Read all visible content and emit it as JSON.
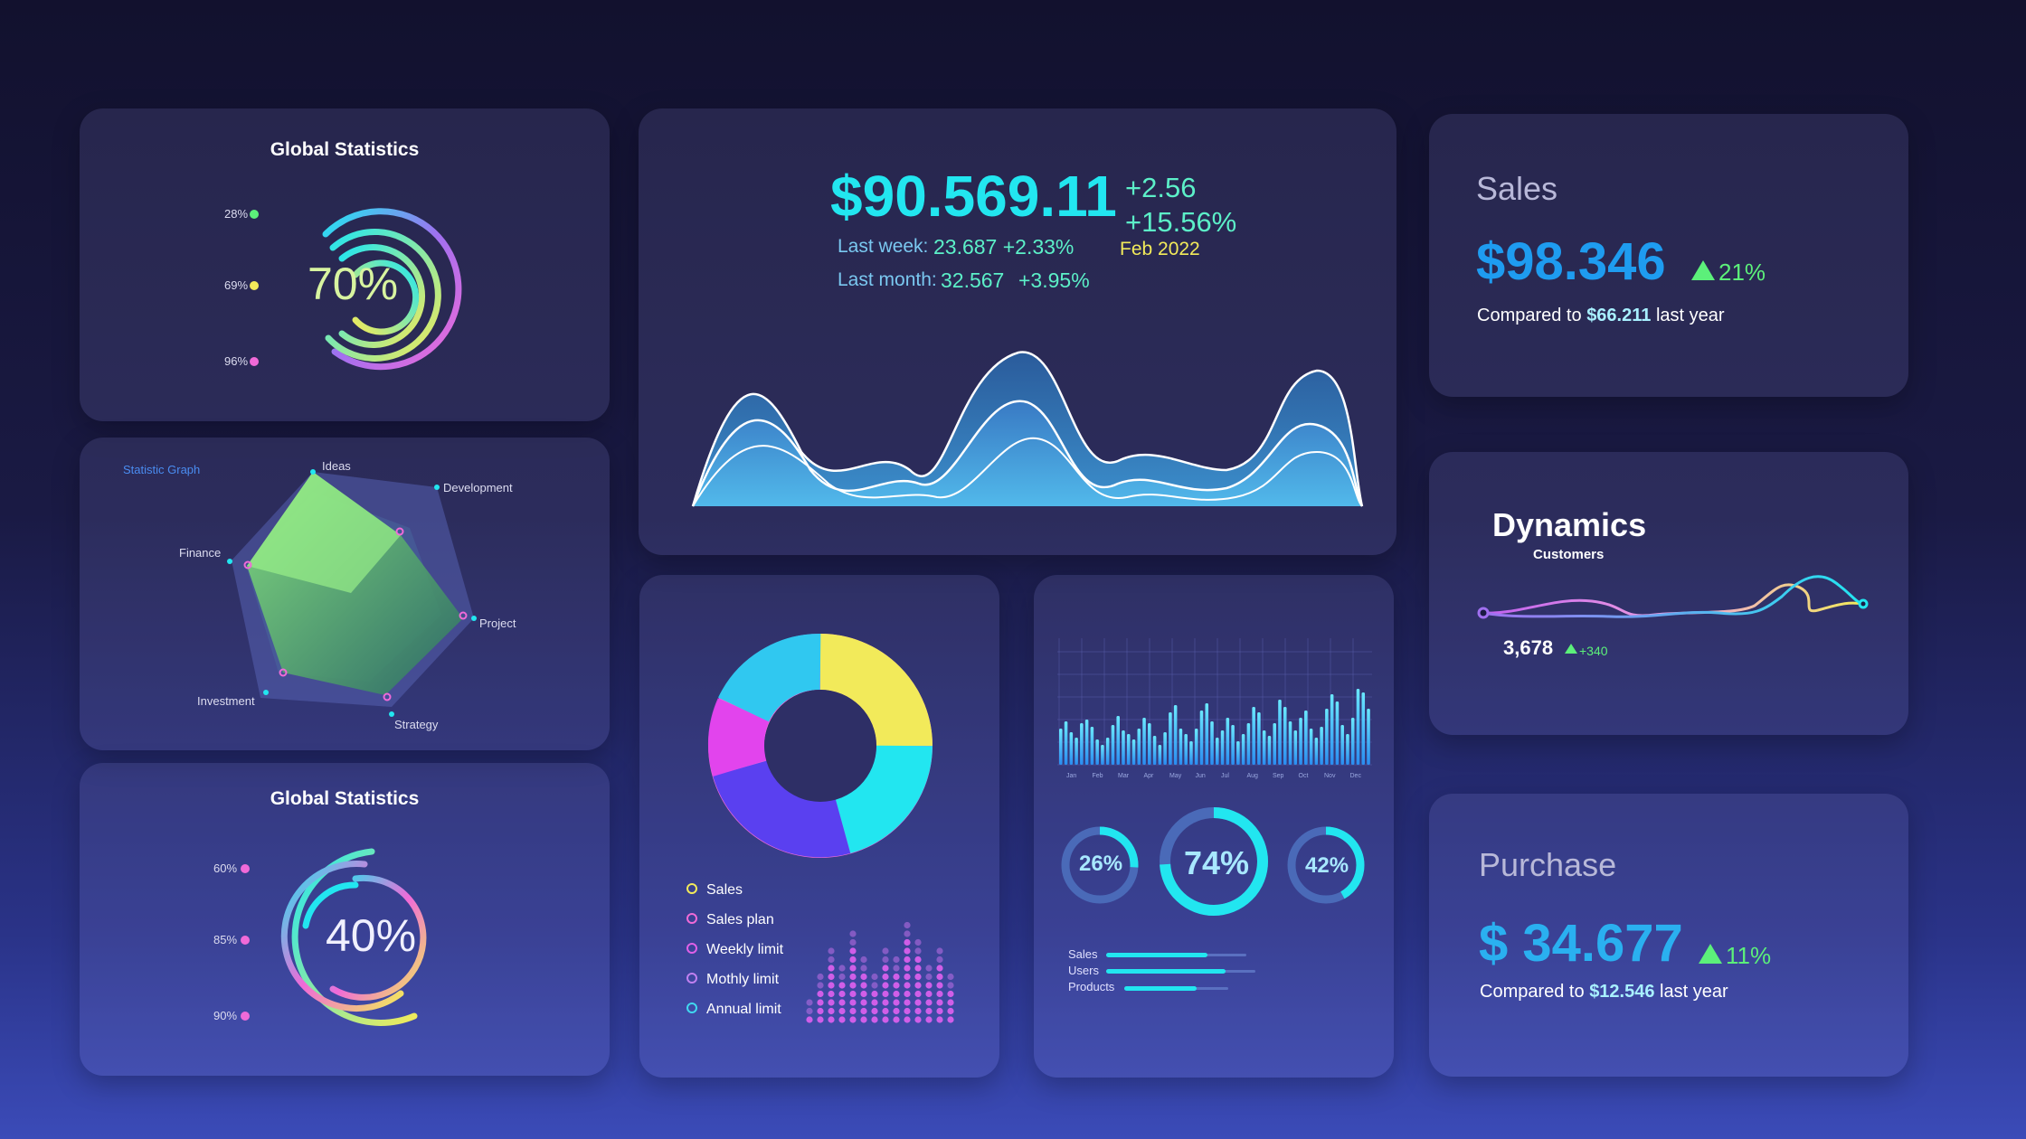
{
  "colors": {
    "cyan": "#22e6f0",
    "green": "#5cf07a",
    "yellow": "#f2ea5a",
    "pink": "#f06ad8",
    "blue": "#2a8cf0"
  },
  "global1": {
    "title": "Global Statistics",
    "percent": "70%",
    "labels": [
      "28%",
      "69%",
      "96%"
    ]
  },
  "radar": {
    "title": "Statistic Graph",
    "axes": [
      "Ideas",
      "Development",
      "Project",
      "Strategy",
      "Investment",
      "Finance"
    ]
  },
  "global2": {
    "title": "Global Statistics",
    "percent": "40%",
    "labels": [
      "60%",
      "85%",
      "90%"
    ]
  },
  "main": {
    "price": "$90.569.11",
    "change": "+2.56",
    "change_pct": "+15.56%",
    "date": "Feb 2022",
    "last_week_label": "Last week:",
    "last_week_value": "23.687 +2.33%",
    "last_month_label": "Last month:",
    "last_month_value": "32.567",
    "last_month_change": "+3.95%"
  },
  "donut": {
    "legend": [
      "Sales",
      "Sales plan",
      "Weekly limit",
      "Mothly limit",
      "Annual limit"
    ],
    "legend_colors": [
      "#f2ea5a",
      "#f06ad8",
      "#e060e8",
      "#c080f0",
      "#40d8f0"
    ]
  },
  "bars": {
    "months": [
      "Jan",
      "Feb",
      "Mar",
      "Apr",
      "May",
      "Jun",
      "Jul",
      "Aug",
      "Sep",
      "Oct",
      "Nov",
      "Dec"
    ],
    "gauges": [
      "26%",
      "74%",
      "42%"
    ],
    "gauge_values": [
      0.26,
      0.74,
      0.42
    ],
    "progress": [
      {
        "label": "Sales",
        "value": 0.72
      },
      {
        "label": "Users",
        "value": 0.8
      },
      {
        "label": "Products",
        "value": 0.7
      }
    ]
  },
  "sales": {
    "title": "Sales",
    "value": "$98.346",
    "change": "21%",
    "compared_prefix": "Compared to",
    "compared_value": "$66.211",
    "compared_suffix": "last year"
  },
  "dynamics": {
    "title": "Dynamics",
    "subtitle": "Customers",
    "value": "3,678",
    "change": "+340"
  },
  "purchase": {
    "title": "Purchase",
    "value": "$ 34.677",
    "change": "11%",
    "compared_prefix": "Compared to",
    "compared_value": "$12.546",
    "compared_suffix": "last year"
  }
}
